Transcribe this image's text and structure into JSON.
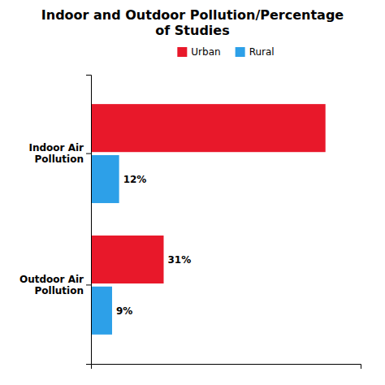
{
  "chart_data": {
    "type": "bar",
    "orientation": "horizontal",
    "title": "Indoor and Outdoor Pollution/Percentage\nof Studies",
    "categories": [
      "Indoor Air\nPollution",
      "Outdoor Air\nPollution"
    ],
    "series": [
      {
        "name": "Urban",
        "color": "#E8182A",
        "values": [
          100,
          31
        ],
        "value_labels": [
          null,
          "31%"
        ]
      },
      {
        "name": "Rural",
        "color": "#2DA0E8",
        "values": [
          12,
          9
        ],
        "value_labels": [
          "12%",
          "9%"
        ]
      }
    ],
    "xlim": [
      0,
      115
    ],
    "data_labels": true,
    "tick_labels": "y",
    "legend": "top"
  }
}
